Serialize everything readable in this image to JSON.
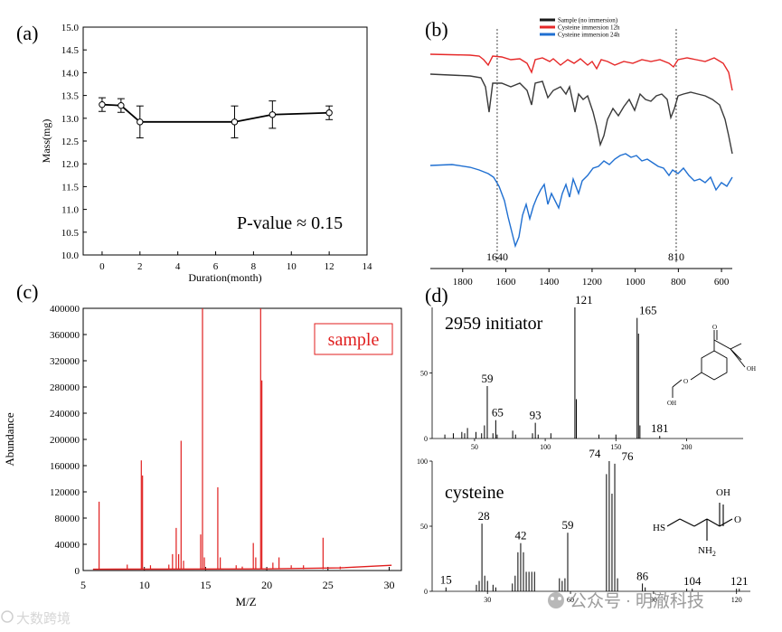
{
  "panels": {
    "a": {
      "letter": "(a)"
    },
    "b": {
      "letter": "(b)"
    },
    "c": {
      "letter": "(c)"
    },
    "d": {
      "letter": "(d)"
    }
  },
  "chart_data": [
    {
      "id": "a",
      "type": "line",
      "title": "",
      "xlabel": "Duration(month)",
      "ylabel": "Mass(mg)",
      "xlim": [
        -1,
        14
      ],
      "ylim": [
        10.0,
        15.0
      ],
      "xticks": [
        0,
        2,
        4,
        6,
        8,
        10,
        12,
        14
      ],
      "yticks": [
        10.0,
        10.5,
        11.0,
        11.5,
        12.0,
        12.5,
        13.0,
        13.5,
        14.0,
        14.5,
        15.0
      ],
      "x": [
        0,
        1,
        2,
        7,
        9,
        12
      ],
      "y": [
        13.3,
        13.28,
        12.92,
        12.92,
        13.08,
        13.12
      ],
      "err": [
        0.15,
        0.15,
        0.35,
        0.35,
        0.3,
        0.15
      ],
      "annotation": "P-value ≈ 0.15"
    },
    {
      "id": "b",
      "type": "line",
      "title": "",
      "xlabel": "",
      "ylabel": "",
      "xlim": [
        1950,
        550
      ],
      "xticks": [
        1800,
        1600,
        1400,
        1200,
        1000,
        800,
        600
      ],
      "legend_position": "top",
      "series": [
        {
          "name": "Sample (no immersion)",
          "color": "#1a1a1a"
        },
        {
          "name": "Cysteine immersion 12h",
          "color": "#e62828"
        },
        {
          "name": "Cysteine immersion 24h",
          "color": "#1f6fd1"
        }
      ],
      "markers": [
        1640,
        810
      ],
      "marker_labels": [
        "1640",
        "810"
      ]
    },
    {
      "id": "c",
      "type": "line",
      "title": "",
      "xlabel": "M/Z",
      "ylabel": "Abundance",
      "xlim": [
        5,
        31
      ],
      "ylim": [
        0,
        400000
      ],
      "xticks": [
        5,
        10,
        15,
        20,
        25,
        30
      ],
      "yticks": [
        0,
        40000,
        80000,
        120000,
        160000,
        200000,
        240000,
        280000,
        320000,
        360000,
        400000
      ],
      "legend": "sample",
      "color": "#e01e1e",
      "peaks": [
        {
          "x": 6.3,
          "y": 105000
        },
        {
          "x": 8.6,
          "y": 9000
        },
        {
          "x": 9.75,
          "y": 168000
        },
        {
          "x": 9.85,
          "y": 145000
        },
        {
          "x": 10.5,
          "y": 8000
        },
        {
          "x": 12.0,
          "y": 9000
        },
        {
          "x": 12.3,
          "y": 25000
        },
        {
          "x": 12.6,
          "y": 65000
        },
        {
          "x": 12.8,
          "y": 25000
        },
        {
          "x": 13.0,
          "y": 198000
        },
        {
          "x": 13.2,
          "y": 15000
        },
        {
          "x": 14.6,
          "y": 55000
        },
        {
          "x": 14.75,
          "y": 400000
        },
        {
          "x": 14.9,
          "y": 20000
        },
        {
          "x": 16.0,
          "y": 127000
        },
        {
          "x": 16.2,
          "y": 20000
        },
        {
          "x": 17.5,
          "y": 8000
        },
        {
          "x": 18.0,
          "y": 6000
        },
        {
          "x": 18.9,
          "y": 42000
        },
        {
          "x": 19.1,
          "y": 20000
        },
        {
          "x": 19.5,
          "y": 400000
        },
        {
          "x": 19.6,
          "y": 290000
        },
        {
          "x": 20.5,
          "y": 12000
        },
        {
          "x": 21.0,
          "y": 20000
        },
        {
          "x": 22.0,
          "y": 8000
        },
        {
          "x": 23.0,
          "y": 8000
        },
        {
          "x": 24.6,
          "y": 50000
        },
        {
          "x": 26.0,
          "y": 6000
        }
      ]
    },
    {
      "id": "d1",
      "type": "bar",
      "title": "2959 initiator",
      "xlim": [
        20,
        240
      ],
      "ylim": [
        0,
        100
      ],
      "xticks": [
        50,
        100,
        150,
        200
      ],
      "yticks": [
        0,
        50
      ],
      "bars": [
        {
          "x": 29,
          "y": 3
        },
        {
          "x": 35,
          "y": 4
        },
        {
          "x": 41,
          "y": 5
        },
        {
          "x": 43,
          "y": 4
        },
        {
          "x": 45,
          "y": 8
        },
        {
          "x": 51,
          "y": 5
        },
        {
          "x": 55,
          "y": 4
        },
        {
          "x": 57,
          "y": 10
        },
        {
          "x": 59,
          "y": 40
        },
        {
          "x": 63,
          "y": 4
        },
        {
          "x": 65,
          "y": 14
        },
        {
          "x": 66,
          "y": 3
        },
        {
          "x": 77,
          "y": 6
        },
        {
          "x": 79,
          "y": 3
        },
        {
          "x": 91,
          "y": 4
        },
        {
          "x": 93,
          "y": 12
        },
        {
          "x": 95,
          "y": 3
        },
        {
          "x": 104,
          "y": 4
        },
        {
          "x": 121,
          "y": 100
        },
        {
          "x": 122,
          "y": 30
        },
        {
          "x": 138,
          "y": 3
        },
        {
          "x": 150,
          "y": 3
        },
        {
          "x": 165,
          "y": 92
        },
        {
          "x": 166,
          "y": 80
        },
        {
          "x": 167,
          "y": 10
        },
        {
          "x": 181,
          "y": 2
        }
      ],
      "peak_labels": [
        "59",
        "65",
        "93",
        "121",
        "165",
        "181"
      ]
    },
    {
      "id": "d2",
      "type": "bar",
      "title": "cysteine",
      "xlim": [
        10,
        125
      ],
      "ylim": [
        0,
        100
      ],
      "xticks": [
        30,
        60,
        90,
        120
      ],
      "yticks": [
        0,
        50,
        100
      ],
      "bars": [
        {
          "x": 15,
          "y": 3
        },
        {
          "x": 26,
          "y": 5
        },
        {
          "x": 27,
          "y": 8
        },
        {
          "x": 28,
          "y": 52
        },
        {
          "x": 29,
          "y": 12
        },
        {
          "x": 30,
          "y": 8
        },
        {
          "x": 32,
          "y": 5
        },
        {
          "x": 33,
          "y": 3
        },
        {
          "x": 39,
          "y": 6
        },
        {
          "x": 40,
          "y": 12
        },
        {
          "x": 41,
          "y": 30
        },
        {
          "x": 42,
          "y": 37
        },
        {
          "x": 43,
          "y": 30
        },
        {
          "x": 44,
          "y": 15
        },
        {
          "x": 45,
          "y": 15
        },
        {
          "x": 46,
          "y": 15
        },
        {
          "x": 47,
          "y": 15
        },
        {
          "x": 56,
          "y": 10
        },
        {
          "x": 57,
          "y": 8
        },
        {
          "x": 58,
          "y": 10
        },
        {
          "x": 59,
          "y": 45
        },
        {
          "x": 73,
          "y": 90
        },
        {
          "x": 74,
          "y": 100
        },
        {
          "x": 75,
          "y": 75
        },
        {
          "x": 76,
          "y": 98
        },
        {
          "x": 77,
          "y": 10
        },
        {
          "x": 86,
          "y": 6
        },
        {
          "x": 87,
          "y": 3
        },
        {
          "x": 102,
          "y": 2
        },
        {
          "x": 104,
          "y": 2
        },
        {
          "x": 120,
          "y": 2
        },
        {
          "x": 121,
          "y": 2
        }
      ],
      "peak_labels": [
        "15",
        "28",
        "42",
        "59",
        "74",
        "76",
        "86",
        "104",
        "121"
      ]
    }
  ],
  "watermarks": {
    "left": "大数跨境",
    "right": "公众号 · 明澈科技"
  }
}
